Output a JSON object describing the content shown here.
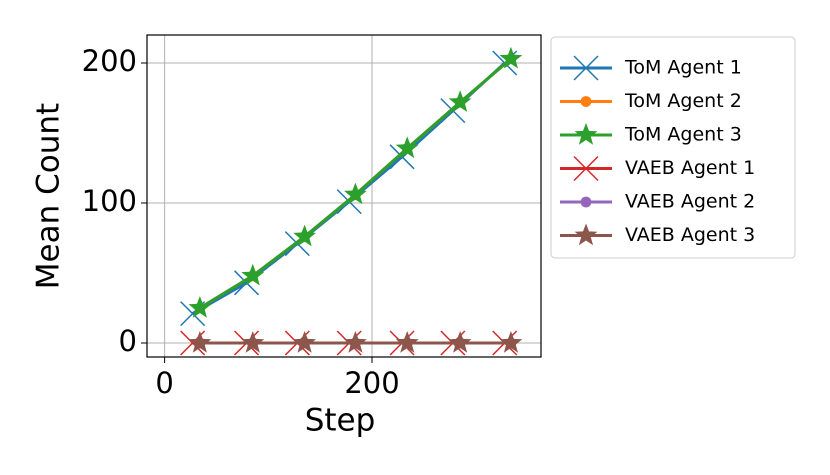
{
  "chart_data": {
    "type": "line",
    "xlabel": "Step",
    "ylabel": "Mean Count",
    "xlim": [
      -17,
      363
    ],
    "ylim": [
      -10,
      220
    ],
    "xticks": [
      0,
      200
    ],
    "yticks": [
      0,
      100,
      200
    ],
    "grid": true,
    "legend": "outside right",
    "series": [
      {
        "name": "ToM Agent 1",
        "color": "#1f77b4",
        "marker": "x",
        "x": [
          27,
          79,
          128,
          178,
          229,
          278,
          328
        ],
        "values": [
          21,
          43,
          71,
          101,
          133,
          166,
          200
        ]
      },
      {
        "name": "ToM Agent 2",
        "color": "#ff7f0e",
        "marker": "o",
        "x": [
          34,
          85,
          135,
          184,
          234,
          285,
          334
        ],
        "values": [
          25,
          48,
          76,
          106,
          139,
          172,
          203
        ]
      },
      {
        "name": "ToM Agent 3",
        "color": "#2ca02c",
        "marker": "*",
        "x": [
          34,
          85,
          135,
          184,
          234,
          285,
          334
        ],
        "values": [
          25,
          48,
          76,
          106,
          139,
          172,
          203
        ]
      },
      {
        "name": "VAEB Agent 1",
        "color": "#d62728",
        "marker": "x",
        "x": [
          27,
          79,
          128,
          178,
          229,
          278,
          328
        ],
        "values": [
          0,
          0,
          0,
          0,
          0,
          0,
          0
        ]
      },
      {
        "name": "VAEB Agent 2",
        "color": "#9467bd",
        "marker": "o",
        "x": [
          34,
          85,
          135,
          184,
          234,
          285,
          334
        ],
        "values": [
          0,
          0,
          0,
          0,
          0,
          0,
          0
        ]
      },
      {
        "name": "VAEB Agent 3",
        "color": "#8c564b",
        "marker": "*",
        "x": [
          34,
          85,
          135,
          184,
          234,
          285,
          334
        ],
        "values": [
          0,
          0,
          0,
          0,
          0,
          0,
          0
        ]
      }
    ]
  }
}
